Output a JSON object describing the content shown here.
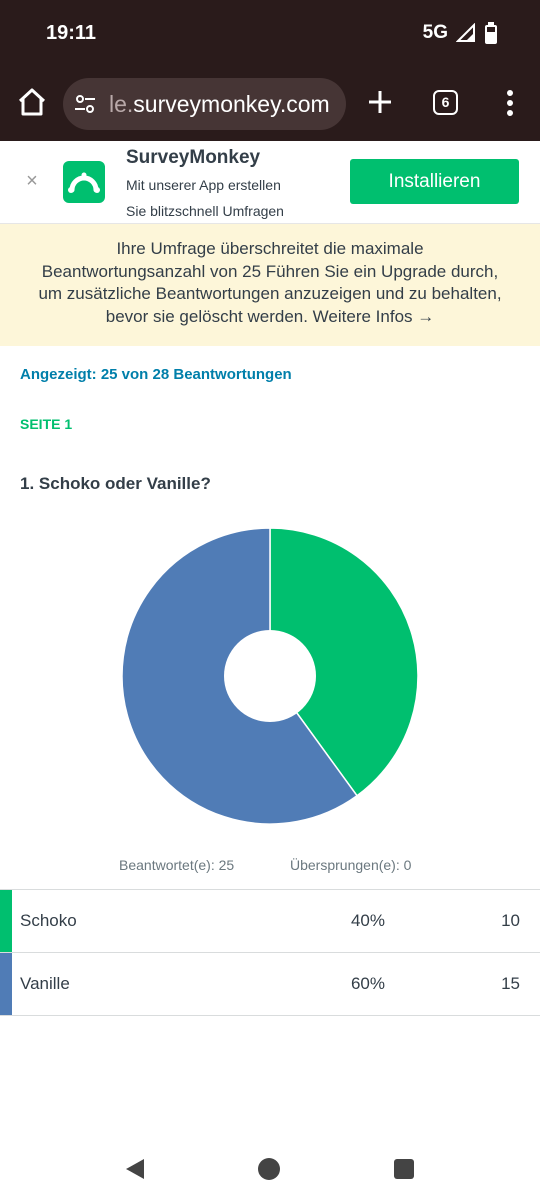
{
  "status": {
    "time": "19:11",
    "network": "5G"
  },
  "browser": {
    "url_dim": "le.",
    "url_main": "surveymonkey.com",
    "tab_count": "6"
  },
  "app_banner": {
    "title": "SurveyMonkey",
    "subtitle_line1": "Mit unserer App erstellen",
    "subtitle_line2": "Sie blitzschnell Umfragen",
    "install_label": "Installieren",
    "close_label": "×"
  },
  "notice": {
    "line1": "Ihre Umfrage überschreitet die maximale",
    "line2": "Beantwortungsanzahl von 25 Führen Sie ein Upgrade durch,",
    "line3": "um zusätzliche Beantwortungen anzuzeigen und zu behalten,",
    "line4": "bevor sie gelöscht werden. Weitere Infos →"
  },
  "summary": {
    "shown": "Angezeigt: 25 von 28 Beantwortungen",
    "page": "SEITE 1",
    "question": "1. Schoko oder Vanille?",
    "answered": "Beantwortet(e): 25",
    "skipped": "Übersprungen(e): 0"
  },
  "chart_data": {
    "type": "pie",
    "donut": true,
    "categories": [
      "Schoko",
      "Vanille"
    ],
    "values": [
      40,
      60
    ],
    "colors": [
      "#00bf6f",
      "#507cb6"
    ]
  },
  "table": {
    "rows": [
      {
        "label": "Schoko",
        "percent": "40%",
        "count": "10",
        "color": "#00bf6f"
      },
      {
        "label": "Vanille",
        "percent": "60%",
        "count": "15",
        "color": "#507cb6"
      }
    ]
  },
  "icons": {
    "home": "home-icon",
    "site_settings": "tune-icon",
    "new_tab": "plus-icon",
    "tabs": "tab-switcher-icon",
    "menu": "more-vert-icon",
    "close": "close-icon",
    "logo": "surveymonkey-logo-icon",
    "back": "back-icon",
    "nav_home": "home-circle-icon",
    "recents": "recents-icon"
  }
}
